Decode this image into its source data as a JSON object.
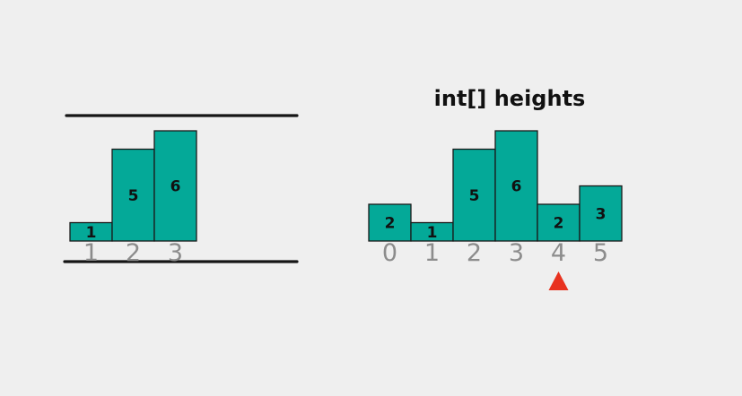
{
  "colors": {
    "bar_fill": "#04a998",
    "marker": "#e8321f",
    "index_text": "#8c8c8c"
  },
  "left_panel": {
    "bars": [
      {
        "index": "1",
        "value": 1
      },
      {
        "index": "2",
        "value": 5
      },
      {
        "index": "3",
        "value": 6
      }
    ]
  },
  "right_panel": {
    "title": "int[] heights",
    "bars": [
      {
        "index": "0",
        "value": 2
      },
      {
        "index": "1",
        "value": 1
      },
      {
        "index": "2",
        "value": 5
      },
      {
        "index": "3",
        "value": 6
      },
      {
        "index": "4",
        "value": 2
      },
      {
        "index": "5",
        "value": 3
      }
    ],
    "pointer": {
      "index": 4,
      "icon": "triangle-up-icon"
    }
  }
}
